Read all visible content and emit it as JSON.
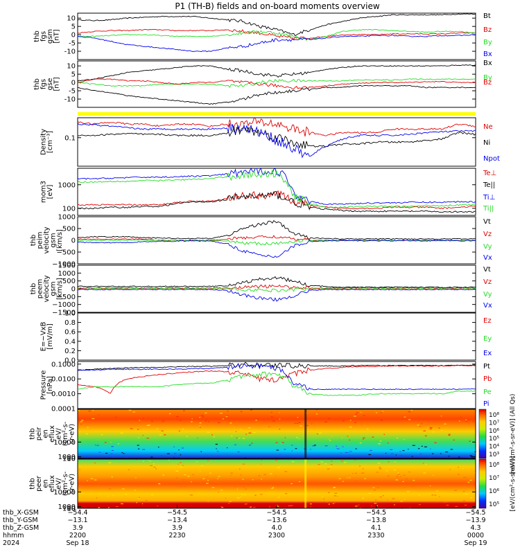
{
  "title": "P1 (TH-B) fields and on-board moments overview",
  "colors": {
    "black": "#000000",
    "red": "#e00000",
    "green": "#22dd22",
    "blue": "#0000ee",
    "flag": "#ffff00"
  },
  "chart_data": [
    {
      "type": "line",
      "panel": "fgs_gsm",
      "ylabel": [
        "thb",
        "fgs",
        "gsm",
        "[nT]"
      ],
      "ylim": [
        -15,
        13
      ],
      "yticks": [
        "10",
        "5",
        "0",
        "-5",
        "-10"
      ],
      "series": [
        {
          "name": "Bt",
          "color": "black",
          "values": [
            9,
            8.5,
            9,
            10,
            10.5,
            11,
            11,
            11,
            10,
            9,
            8,
            5,
            3,
            0,
            3,
            6,
            8,
            10,
            11,
            12,
            12,
            12,
            12,
            12.5,
            12.5
          ]
        },
        {
          "name": "Bz",
          "color": "red",
          "values": [
            1,
            2,
            2.5,
            2.5,
            3,
            3,
            2.5,
            2.5,
            2.5,
            3,
            2,
            1,
            -1,
            -2,
            -2,
            -1,
            0,
            0,
            0,
            0.5,
            0.5,
            0.5,
            0.5,
            1,
            1
          ]
        },
        {
          "name": "By",
          "color": "green",
          "values": [
            -1,
            -1,
            -0.5,
            0,
            0,
            -0.5,
            -1,
            -1,
            -1,
            0,
            1,
            2,
            1,
            -1,
            -3,
            -1,
            2,
            3,
            3,
            2.5,
            2,
            1.5,
            2,
            2,
            1
          ]
        },
        {
          "name": "Bx",
          "color": "blue",
          "values": [
            -1,
            -2,
            -4,
            -6,
            -7,
            -8,
            -9,
            -10,
            -10,
            -8,
            -7,
            -5,
            -3,
            -3,
            -3,
            -2,
            -1,
            -1,
            -0.5,
            -0.5,
            -1,
            -1,
            -0.5,
            -0.5,
            0
          ]
        }
      ]
    },
    {
      "type": "line",
      "panel": "fgs_gse",
      "ylabel": [
        "thb",
        "fgs",
        "gse",
        "[nT]"
      ],
      "ylim": [
        -15,
        13
      ],
      "yticks": [
        "10",
        "5",
        "0",
        "-5",
        "-10"
      ],
      "series": [
        {
          "name": "Bx",
          "color": "black",
          "values": [
            1,
            2,
            4,
            6,
            7,
            8,
            9,
            10,
            10,
            8,
            7,
            5,
            4,
            5,
            6,
            8,
            9,
            10,
            10,
            10,
            10,
            10,
            10,
            10.5,
            10.5
          ]
        },
        {
          "name": "By",
          "color": "green",
          "values": [
            0,
            -1,
            -2,
            -2,
            -2,
            -1,
            -1,
            -1,
            -1,
            -2,
            -2,
            0,
            1,
            1,
            1,
            1,
            1,
            1.5,
            1.5,
            1.5,
            2,
            2,
            2,
            2,
            2
          ]
        },
        {
          "name": "Bz",
          "color": "red",
          "values": [
            0,
            2,
            2,
            1,
            1,
            0,
            -1,
            0,
            0,
            1,
            0,
            -1,
            -2,
            -3,
            -3,
            -2,
            -1,
            -0.5,
            0,
            0,
            0,
            0.5,
            0.5,
            0,
            0
          ]
        },
        {
          "name": "",
          "color": "black",
          "values": [
            -3,
            -5,
            -6,
            -8,
            -9,
            -10,
            -11,
            -12,
            -13,
            -12,
            -10,
            -7,
            -6,
            -5,
            -4,
            -3,
            -3,
            -2,
            -2,
            -2,
            -2,
            -3,
            -3,
            -3,
            -3
          ]
        }
      ]
    },
    {
      "type": "line",
      "panel": "density",
      "scale": "log",
      "ylabel": [
        "Density",
        "[cm⁻³]"
      ],
      "ylim": [
        0.01,
        0.5
      ],
      "yticks": [
        "0.1"
      ],
      "series": [
        {
          "name": "Ne",
          "color": "red",
          "values": [
            0.35,
            0.3,
            0.35,
            0.3,
            0.3,
            0.25,
            0.3,
            0.3,
            0.25,
            0.3,
            0.3,
            0.35,
            0.3,
            0.2,
            0.15,
            0.12,
            0.15,
            0.15,
            0.15,
            0.2,
            0.2,
            0.2,
            0.2,
            0.3,
            0.25
          ]
        },
        {
          "name": "Ni",
          "color": "black",
          "values": [
            0.12,
            0.12,
            0.13,
            0.14,
            0.13,
            0.13,
            0.12,
            0.12,
            0.12,
            0.14,
            0.2,
            0.15,
            0.1,
            0.07,
            0.05,
            0.05,
            0.06,
            0.06,
            0.07,
            0.07,
            0.07,
            0.08,
            0.09,
            0.15,
            0.13
          ]
        },
        {
          "name": "Npot",
          "color": "blue",
          "values": [
            0.3,
            0.28,
            0.25,
            0.22,
            0.2,
            0.2,
            0.2,
            0.2,
            0.2,
            0.22,
            0.22,
            0.15,
            0.08,
            0.04,
            0.02,
            0.05,
            0.09,
            0.12,
            0.12,
            0.12,
            0.13,
            0.15,
            0.16,
            0.17,
            0.17
          ]
        }
      ]
    },
    {
      "type": "line",
      "panel": "temperature",
      "scale": "log",
      "ylabel": [
        "mom3",
        "[eV]"
      ],
      "ylim": [
        50,
        5000
      ],
      "yticks": [
        "1000",
        "100"
      ],
      "series": [
        {
          "name": "Te⊥",
          "color": "red",
          "values": [
            140,
            140,
            140,
            140,
            140,
            140,
            180,
            200,
            200,
            250,
            350,
            350,
            400,
            200,
            130,
            110,
            100,
            100,
            100,
            110,
            110,
            110,
            100,
            110,
            120
          ]
        },
        {
          "name": "Te||",
          "color": "black",
          "values": [
            100,
            100,
            110,
            110,
            120,
            120,
            160,
            190,
            190,
            230,
            320,
            330,
            380,
            180,
            110,
            90,
            80,
            75,
            75,
            75,
            75,
            75,
            70,
            70,
            70
          ]
        },
        {
          "name": "Ti⊥",
          "color": "blue",
          "values": [
            1800,
            1800,
            1900,
            2000,
            2100,
            2100,
            2200,
            2300,
            2400,
            2800,
            3500,
            3800,
            4000,
            400,
            200,
            150,
            150,
            160,
            170,
            170,
            180,
            180,
            180,
            190,
            190
          ]
        },
        {
          "name": "Ti||",
          "color": "green",
          "values": [
            1300,
            1300,
            1400,
            1400,
            1500,
            1500,
            1600,
            1700,
            1800,
            2200,
            2600,
            2800,
            3000,
            300,
            160,
            110,
            110,
            120,
            120,
            120,
            120,
            130,
            130,
            140,
            140
          ]
        }
      ]
    },
    {
      "type": "line",
      "panel": "peim_velocity",
      "ylabel": [
        "thb",
        "peim",
        "velocity",
        "gsm",
        "[km/s]"
      ],
      "ylim": [
        -1000,
        1000
      ],
      "yticks": [
        "1000",
        "500",
        "0",
        "−500",
        "−1000"
      ],
      "series": [
        {
          "name": "Vt",
          "color": "black",
          "values": [
            100,
            150,
            150,
            150,
            100,
            100,
            80,
            80,
            80,
            200,
            500,
            700,
            800,
            300,
            100,
            80,
            60,
            60,
            60,
            60,
            60,
            60,
            60,
            60,
            60
          ]
        },
        {
          "name": "Vz",
          "color": "red",
          "values": [
            50,
            50,
            50,
            50,
            50,
            0,
            0,
            0,
            0,
            50,
            100,
            150,
            150,
            50,
            0,
            0,
            0,
            0,
            0,
            0,
            0,
            0,
            0,
            0,
            0
          ]
        },
        {
          "name": "Vy",
          "color": "green",
          "values": [
            0,
            0,
            0,
            0,
            0,
            0,
            0,
            0,
            0,
            -50,
            -100,
            -150,
            -150,
            -50,
            0,
            0,
            0,
            0,
            0,
            0,
            0,
            0,
            0,
            0,
            0
          ]
        },
        {
          "name": "Vx",
          "color": "blue",
          "values": [
            -80,
            -100,
            -100,
            -100,
            -50,
            -50,
            -30,
            -30,
            -30,
            -150,
            -450,
            -650,
            -700,
            -250,
            -50,
            -30,
            -20,
            -20,
            -20,
            -20,
            -20,
            -20,
            -20,
            -20,
            -20
          ]
        }
      ]
    },
    {
      "type": "line",
      "panel": "peem_velocity",
      "ylabel": [
        "thb",
        "peem",
        "velocity",
        "gsm",
        "[km/s]"
      ],
      "ylim": [
        -1500,
        1500
      ],
      "yticks": [
        "1500",
        "1000",
        "500",
        "0",
        "−500",
        "−1000",
        "−1500"
      ],
      "series": [
        {
          "name": "Vt",
          "color": "black",
          "values": [
            150,
            150,
            150,
            150,
            150,
            150,
            150,
            150,
            150,
            200,
            400,
            600,
            700,
            500,
            200,
            150,
            100,
            100,
            100,
            100,
            100,
            100,
            100,
            100,
            100
          ]
        },
        {
          "name": "Vz",
          "color": "red",
          "values": [
            50,
            50,
            50,
            50,
            50,
            50,
            50,
            50,
            50,
            50,
            100,
            150,
            150,
            100,
            50,
            50,
            50,
            50,
            50,
            50,
            50,
            50,
            50,
            50,
            50
          ]
        },
        {
          "name": "Vy",
          "color": "green",
          "values": [
            0,
            0,
            0,
            0,
            0,
            0,
            0,
            0,
            0,
            0,
            -50,
            -100,
            -100,
            -50,
            0,
            0,
            0,
            0,
            0,
            0,
            0,
            0,
            0,
            0,
            0
          ]
        },
        {
          "name": "Vx",
          "color": "blue",
          "values": [
            -50,
            -50,
            -50,
            -50,
            -50,
            -50,
            -50,
            -50,
            -50,
            -100,
            -400,
            -600,
            -700,
            -450,
            -100,
            -50,
            -50,
            -50,
            -50,
            -50,
            -50,
            -50,
            -50,
            -50,
            -50
          ]
        }
      ]
    },
    {
      "type": "line",
      "panel": "efield",
      "ylabel": [
        "E=−VxB",
        "[mV/m]"
      ],
      "ylim": [
        0,
        1
      ],
      "yticks": [
        "1.0",
        "0.8",
        "0.6",
        "0.4",
        "0.2",
        "0.0"
      ],
      "series": [
        {
          "name": "Ez",
          "color": "red",
          "values": []
        },
        {
          "name": "Ey",
          "color": "green",
          "values": []
        },
        {
          "name": "Ex",
          "color": "blue",
          "values": []
        }
      ]
    },
    {
      "type": "line",
      "panel": "pressure",
      "scale": "log",
      "ylabel": [
        "Pressure",
        "[nPa]"
      ],
      "ylim": [
        0.0001,
        0.15
      ],
      "yticks": [
        "0.1000",
        "0.0100",
        "0.0010",
        "0.0001"
      ],
      "series": [
        {
          "name": "Pt",
          "color": "black",
          "values": [
            0.04,
            0.045,
            0.05,
            0.055,
            0.06,
            0.06,
            0.065,
            0.07,
            0.07,
            0.08,
            0.09,
            0.09,
            0.085,
            0.08,
            0.075,
            0.075,
            0.075,
            0.08,
            0.08,
            0.08,
            0.08,
            0.08,
            0.08,
            0.085,
            0.085
          ]
        },
        {
          "name": "Pb",
          "color": "red",
          "values": [
            0.004,
            0.003,
            0.001,
            0.01,
            0.015,
            0.02,
            0.025,
            0.03,
            0.035,
            0.03,
            0.02,
            0.01,
            0.008,
            0.02,
            0.04,
            0.05,
            0.06,
            0.07,
            0.07,
            0.075,
            0.075,
            0.075,
            0.075,
            0.08,
            0.08
          ]
        },
        {
          "name": "Pe",
          "color": "green",
          "values": [
            0.002,
            0.003,
            0.003,
            0.003,
            0.003,
            0.003,
            0.004,
            0.005,
            0.005,
            0.008,
            0.015,
            0.02,
            0.02,
            0.003,
            0.001,
            0.0008,
            0.0008,
            0.0008,
            0.001,
            0.001,
            0.001,
            0.001,
            0.001,
            0.0015,
            0.0015
          ]
        },
        {
          "name": "Pi",
          "color": "blue",
          "values": [
            0.04,
            0.04,
            0.045,
            0.045,
            0.045,
            0.045,
            0.045,
            0.05,
            0.05,
            0.06,
            0.08,
            0.07,
            0.05,
            0.005,
            0.002,
            0.002,
            0.002,
            0.002,
            0.002,
            0.002,
            0.002,
            0.002,
            0.002,
            0.002,
            0.002
          ]
        }
      ]
    },
    {
      "type": "heatmap",
      "panel": "peir_en_eflux",
      "ylabel": [
        "thb",
        "peir",
        "en",
        "eflux",
        "eV/",
        "(cm²-s-",
        "sr-eV)"
      ],
      "ylim": [
        5,
        30000
      ],
      "yticks": [
        "10000",
        "1000",
        "100",
        "10"
      ],
      "colorbar_ticks": [
        "10⁸",
        "10⁷",
        "10⁶",
        "10⁵",
        "10⁴",
        "10³"
      ],
      "colorbar_label": "[eV/(cm²-s-sr-eV)] (All Qs)"
    },
    {
      "type": "heatmap",
      "panel": "peer_en_eflux",
      "ylabel": [
        "thb",
        "peer",
        "en",
        "eflux",
        "eV/",
        "(cm²-s-",
        "sr-eV)"
      ],
      "ylim": [
        5,
        30000
      ],
      "yticks": [
        "10000",
        "1000",
        "100",
        "10"
      ],
      "colorbar_ticks": [
        "10⁸",
        "10⁷",
        "10⁶",
        "10⁵"
      ],
      "colorbar_label": "[eV/(cm²-s-sr-eV)]"
    }
  ],
  "xaxis": {
    "row_labels": [
      "thb_X-GSM",
      "thb_Y-GSM",
      "thb_Z-GSM",
      "hhmm",
      "2024"
    ],
    "ticks": [
      {
        "X": "−54.4",
        "Y": "−13.1",
        "Z": "3.9",
        "hhmm": "2200",
        "date": "Sep 18"
      },
      {
        "X": "−54.5",
        "Y": "−13.4",
        "Z": "3.9",
        "hhmm": "2230",
        "date": ""
      },
      {
        "X": "−54.5",
        "Y": "−13.6",
        "Z": "4.0",
        "hhmm": "2300",
        "date": ""
      },
      {
        "X": "−54.5",
        "Y": "−13.8",
        "Z": "4.1",
        "hhmm": "2330",
        "date": ""
      },
      {
        "X": "−54.5",
        "Y": "−13.9",
        "Z": "4.3",
        "hhmm": "0000",
        "date": "Sep 19"
      }
    ]
  }
}
